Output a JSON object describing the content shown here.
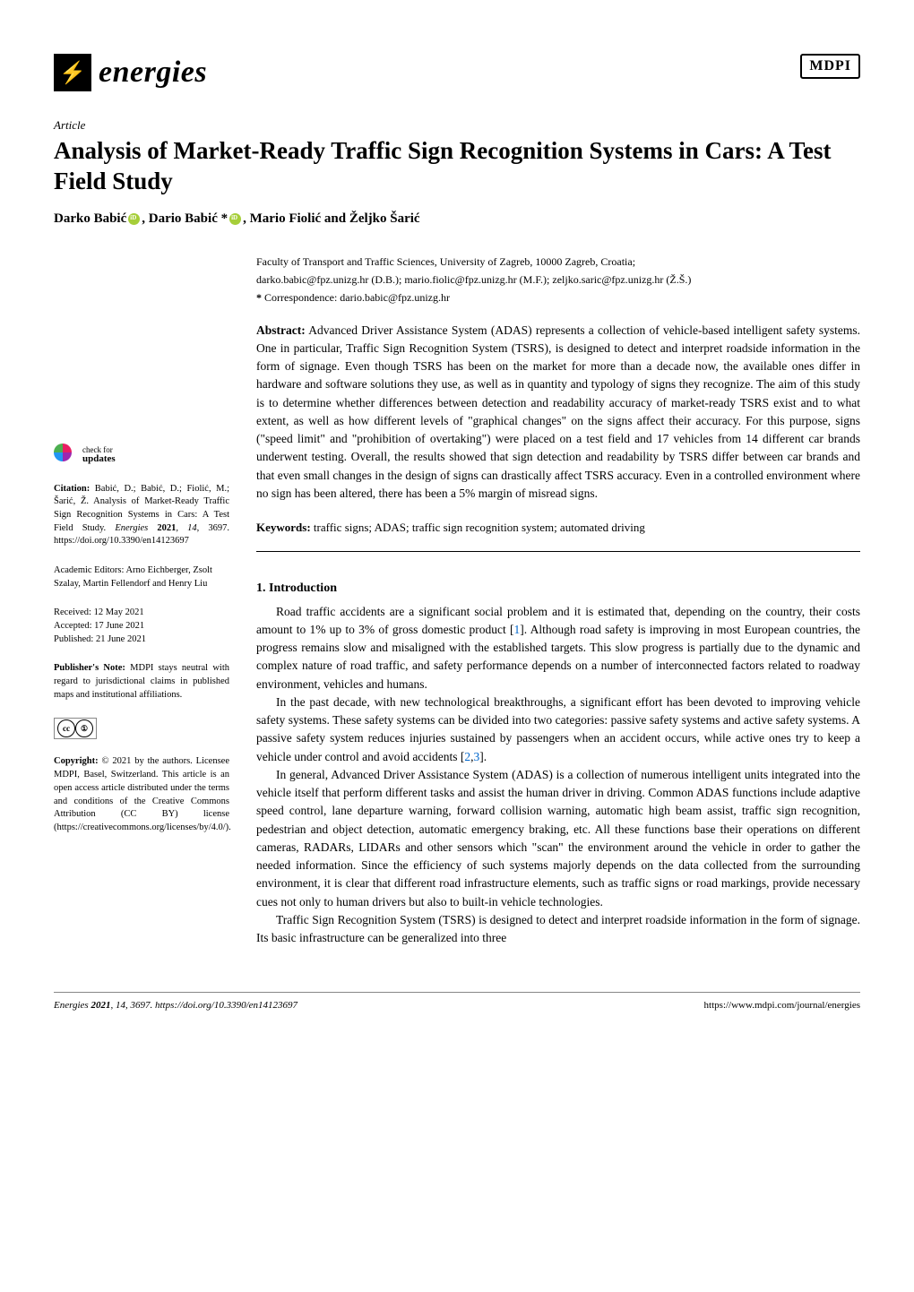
{
  "journal": {
    "name": "energies",
    "publisher": "MDPI"
  },
  "article": {
    "type": "Article",
    "title": "Analysis of Market-Ready Traffic Sign Recognition Systems in Cars: A Test Field Study",
    "authors_html": "Darko Babić , Dario Babić * , Mario Fiolić and Željko Šarić",
    "author1": "Darko Babić",
    "author2": ", Dario Babić *",
    "author3": ", Mario Fiolić and Željko Šarić"
  },
  "affiliation": "Faculty of Transport and Traffic Sciences, University of Zagreb, 10000 Zagreb, Croatia;",
  "emails": "darko.babic@fpz.unizg.hr (D.B.); mario.fiolic@fpz.unizg.hr (M.F.); zeljko.saric@fpz.unizg.hr (Ž.Š.)",
  "correspondence_label": "*",
  "correspondence": "Correspondence: dario.babic@fpz.unizg.hr",
  "abstract": {
    "label": "Abstract:",
    "text": "Advanced Driver Assistance System (ADAS) represents a collection of vehicle-based intelligent safety systems. One in particular, Traffic Sign Recognition System (TSRS), is designed to detect and interpret roadside information in the form of signage. Even though TSRS has been on the market for more than a decade now, the available ones differ in hardware and software solutions they use, as well as in quantity and typology of signs they recognize. The aim of this study is to determine whether differences between detection and readability accuracy of market-ready TSRS exist and to what extent, as well as how different levels of \"graphical changes\" on the signs affect their accuracy. For this purpose, signs (\"speed limit\" and \"prohibition of overtaking\") were placed on a test field and 17 vehicles from 14 different car brands underwent testing. Overall, the results showed that sign detection and readability by TSRS differ between car brands and that even small changes in the design of signs can drastically affect TSRS accuracy. Even in a controlled environment where no sign has been altered, there has been a 5% margin of misread signs."
  },
  "keywords": {
    "label": "Keywords:",
    "text": "traffic signs; ADAS; traffic sign recognition system; automated driving"
  },
  "sidebar": {
    "check_for": "check for",
    "updates": "updates",
    "citation_label": "Citation:",
    "citation_authors": "Babić, D.; Babić, D.; Fiolić, M.; Šarić, Ž. Analysis of Market-Ready Traffic Sign Recognition Systems in Cars: A Test Field Study.",
    "citation_journal": "Energies",
    "citation_year": "2021",
    "citation_vol": ", 14",
    "citation_page": ", 3697.",
    "citation_doi": "https://doi.org/10.3390/en14123697",
    "academic_editors": "Academic Editors: Arno Eichberger, Zsolt Szalay, Martin Fellendorf and Henry Liu",
    "received": "Received: 12 May 2021",
    "accepted": "Accepted: 17 June 2021",
    "published": "Published: 21 June 2021",
    "publishers_note_label": "Publisher's Note:",
    "publishers_note": "MDPI stays neutral with regard to jurisdictional claims in published maps and institutional affiliations.",
    "copyright_label": "Copyright:",
    "copyright": "© 2021 by the authors. Licensee MDPI, Basel, Switzerland. This article is an open access article distributed under the terms and conditions of the Creative Commons Attribution (CC BY) license (https://creativecommons.org/licenses/by/4.0/)."
  },
  "section": {
    "heading": "1. Introduction",
    "p1": "Road traffic accidents are a significant social problem and it is estimated that, depending on the country, their costs amount to 1% up to 3% of gross domestic product [",
    "p1_ref": "1",
    "p1_end": "]. Although road safety is improving in most European countries, the progress remains slow and misaligned with the established targets. This slow progress is partially due to the dynamic and complex nature of road traffic, and safety performance depends on a number of interconnected factors related to roadway environment, vehicles and humans.",
    "p2": "In the past decade, with new technological breakthroughs, a significant effort has been devoted to improving vehicle safety systems. These safety systems can be divided into two categories: passive safety systems and active safety systems. A passive safety system reduces injuries sustained by passengers when an accident occurs, while active ones try to keep a vehicle under control and avoid accidents [",
    "p2_ref1": "2",
    "p2_mid": ",",
    "p2_ref2": "3",
    "p2_end": "].",
    "p3": "In general, Advanced Driver Assistance System (ADAS) is a collection of numerous intelligent units integrated into the vehicle itself that perform different tasks and assist the human driver in driving. Common ADAS functions include adaptive speed control, lane departure warning, forward collision warning, automatic high beam assist, traffic sign recognition, pedestrian and object detection, automatic emergency braking, etc. All these functions base their operations on different cameras, RADARs, LIDARs and other sensors which \"scan\" the environment around the vehicle in order to gather the needed information. Since the efficiency of such systems majorly depends on the data collected from the surrounding environment, it is clear that different road infrastructure elements, such as traffic signs or road markings, provide necessary cues not only to human drivers but also to built-in vehicle technologies.",
    "p4": "Traffic Sign Recognition System (TSRS) is designed to detect and interpret roadside information in the form of signage. Its basic infrastructure can be generalized into three"
  },
  "footer": {
    "left_journal": "Energies",
    "left_year": "2021",
    "left_vol": ", 14",
    "left_page": ", 3697. https://doi.org/10.3390/en14123697",
    "right": "https://www.mdpi.com/journal/energies"
  },
  "colors": {
    "orcid": "#a6ce39",
    "link": "#0066cc",
    "icon_accent": "#f7a900"
  }
}
